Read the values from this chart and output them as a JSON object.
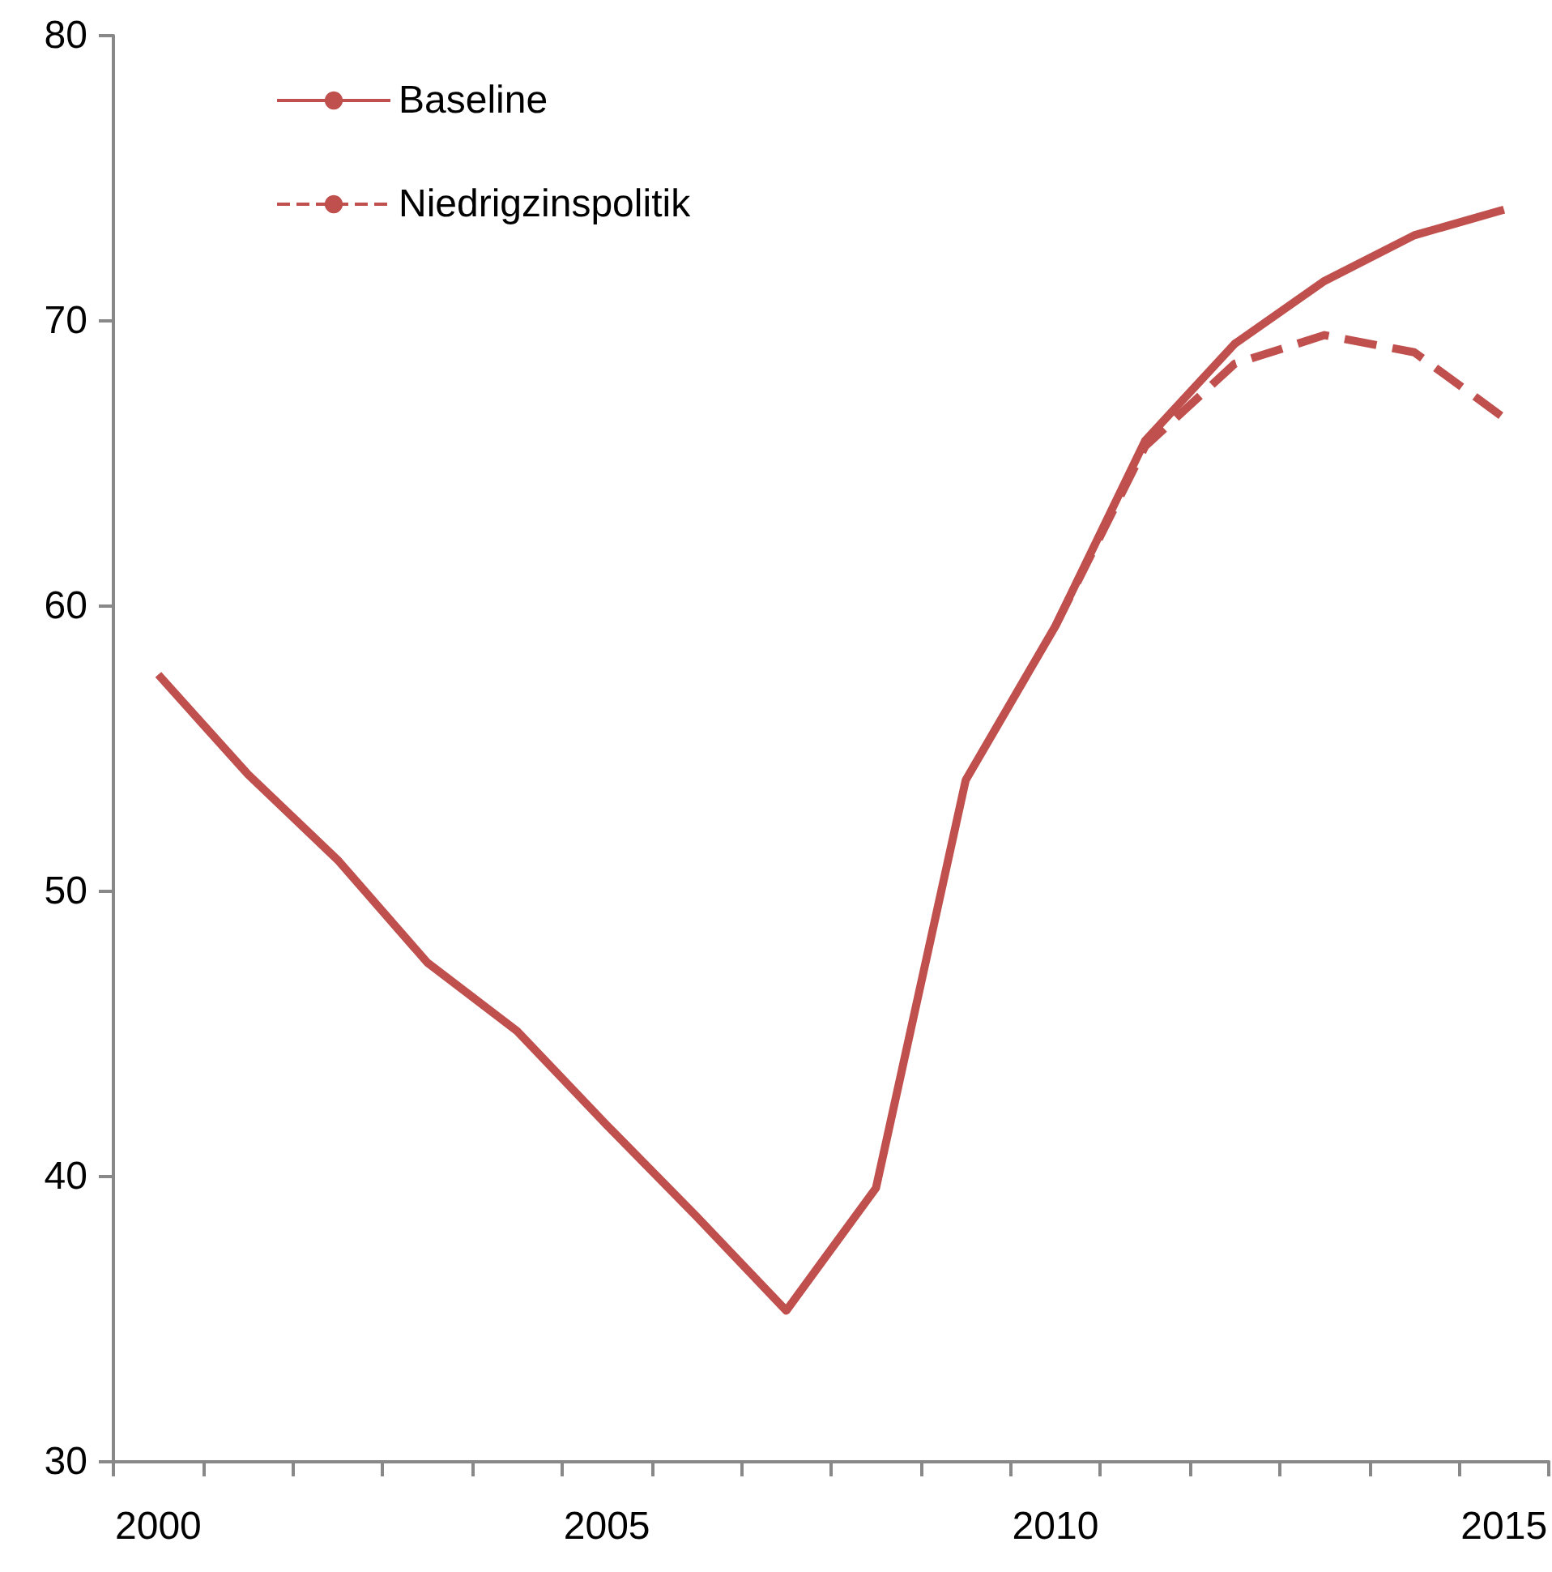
{
  "chart_data": {
    "type": "line",
    "categories": [
      "2000",
      null,
      null,
      null,
      null,
      "2005",
      null,
      null,
      null,
      null,
      "2010",
      null,
      null,
      null,
      null,
      "2015"
    ],
    "series": [
      {
        "name": "Baseline",
        "color": "#c0504d",
        "line_style": "solid",
        "values": [
          57.6,
          54.1,
          51.1,
          47.5,
          45.1,
          41.8,
          38.6,
          35.3,
          39.6,
          53.9,
          59.3,
          65.8,
          69.2,
          71.4,
          73.0,
          73.9
        ]
      },
      {
        "name": "Niedrigzinspolitik",
        "color": "#c0504d",
        "line_style": "dashed",
        "values": [
          null,
          null,
          null,
          null,
          null,
          null,
          null,
          null,
          null,
          null,
          59.3,
          65.6,
          68.5,
          69.5,
          68.9,
          66.6
        ]
      }
    ],
    "ylim": [
      30,
      80
    ],
    "yticks": [
      30,
      40,
      50,
      60,
      70,
      80
    ],
    "grid": false,
    "legend": "top left",
    "marker": "none"
  }
}
